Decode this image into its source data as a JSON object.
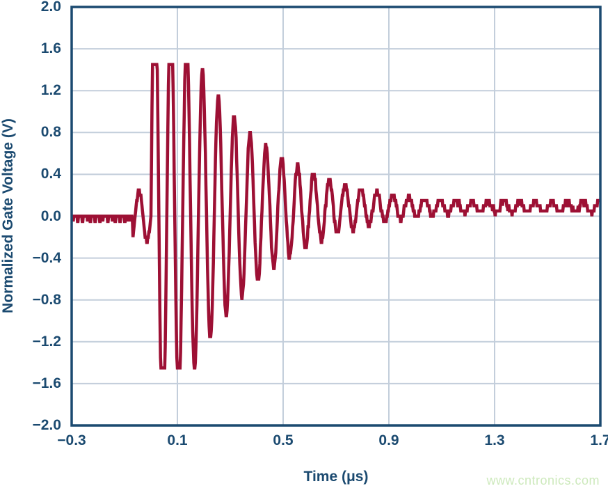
{
  "watermark": {
    "text": "www.cntronics.com",
    "color": "#cde9bc"
  },
  "chart_data": {
    "type": "line",
    "title": "",
    "xlabel": "Time (μs)",
    "ylabel": "Normalized Gate Voltage (V)",
    "xlim": [
      -0.3,
      1.7
    ],
    "ylim": [
      -2.0,
      2.0
    ],
    "x_ticks": [
      -0.3,
      0.1,
      0.5,
      0.9,
      1.3,
      1.7
    ],
    "x_tick_labels": [
      "−0.3",
      "0.1",
      "0.5",
      "0.9",
      "1.3",
      "1.7"
    ],
    "y_ticks": [
      2.0,
      1.6,
      1.2,
      0.8,
      0.4,
      0.0,
      -0.4,
      -0.8,
      -1.2,
      -1.6,
      -2.0
    ],
    "y_tick_labels": [
      "2.0",
      "1.6",
      "1.2",
      "0.8",
      "0.4",
      "0.0",
      "−0.4",
      "−0.8",
      "−1.2",
      "−1.6",
      "−2.0"
    ],
    "grid": true,
    "legend": "none",
    "frame_color": "#1b4a70",
    "grid_color": "#c3cedb",
    "label_color": "#1b4a70",
    "series": [
      {
        "name": "normalized-gate-voltage",
        "color": "#9d1034"
      }
    ],
    "waveform": {
      "description": "Flat noisy baseline near 0 V, small square precursor oscillation just before t=0, then a large ringing burst clipped at ±1.45 V decaying exponentially and settling to ≈+0.09 V with a small square ripple out to t=1.7 μs",
      "baseline_pre": -0.01,
      "noise_amp": 0.035,
      "precursor_start": -0.068,
      "precursor_amp": 0.24,
      "burst_start": 0.0,
      "period_us": 0.06,
      "initial_amp": 2.6,
      "decay_tau_us": 0.3,
      "clip_level": 1.45,
      "floor_amp": 0.05,
      "settle_level": 0.09,
      "settle_tau_us": 0.35,
      "quant_step": 0.05,
      "sample_dt": 0.002
    },
    "peak_envelope": [
      {
        "t": 0.015,
        "v": 1.45
      },
      {
        "t": 0.075,
        "v": 1.45
      },
      {
        "t": 0.135,
        "v": 1.45
      },
      {
        "t": 0.195,
        "v": 1.35
      },
      {
        "t": 0.25,
        "v": 1.17
      },
      {
        "t": 0.31,
        "v": 1.02
      },
      {
        "t": 0.37,
        "v": 0.88
      },
      {
        "t": 0.43,
        "v": 0.77
      },
      {
        "t": 0.49,
        "v": 0.66
      },
      {
        "t": 0.55,
        "v": 0.56
      },
      {
        "t": 0.64,
        "v": 0.45
      },
      {
        "t": 0.76,
        "v": 0.34
      },
      {
        "t": 0.9,
        "v": 0.25
      },
      {
        "t": 1.1,
        "v": 0.18
      },
      {
        "t": 1.3,
        "v": 0.15
      },
      {
        "t": 1.5,
        "v": 0.14
      },
      {
        "t": 1.7,
        "v": 0.14
      }
    ]
  }
}
